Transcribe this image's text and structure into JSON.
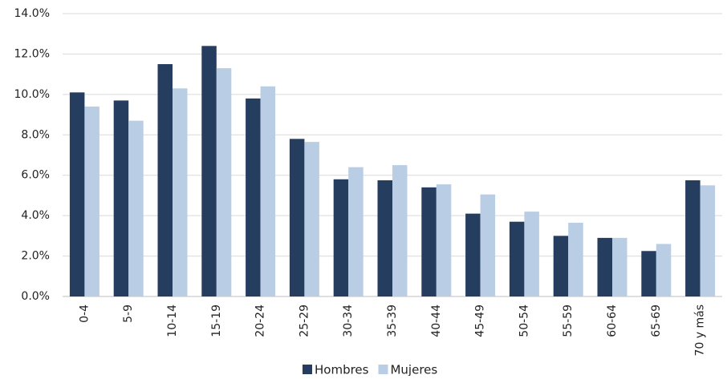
{
  "chart_data": {
    "type": "bar",
    "categories": [
      "0-4",
      "5-9",
      "10-14",
      "15-19",
      "20-24",
      "25-29",
      "30-34",
      "35-39",
      "40-44",
      "45-49",
      "50-54",
      "55-59",
      "60-64",
      "65-69",
      "70 y más"
    ],
    "series": [
      {
        "name": "Hombres",
        "color": "#253d5f",
        "values": [
          10.1,
          9.7,
          11.5,
          12.4,
          9.8,
          7.8,
          5.8,
          5.75,
          5.4,
          4.1,
          3.7,
          3.0,
          2.9,
          2.25,
          5.75
        ]
      },
      {
        "name": "Mujeres",
        "color": "#b9cde5",
        "values": [
          9.4,
          8.7,
          10.3,
          11.3,
          10.4,
          7.65,
          6.4,
          6.5,
          5.55,
          5.05,
          4.2,
          3.65,
          2.9,
          2.6,
          5.5
        ]
      }
    ],
    "ylim": [
      0,
      14
    ],
    "yticks": [
      {
        "value": 0,
        "label": "0.0%"
      },
      {
        "value": 2,
        "label": "2.0%"
      },
      {
        "value": 4,
        "label": "4.0%"
      },
      {
        "value": 6,
        "label": "6.0%"
      },
      {
        "value": 8,
        "label": "8.0%"
      },
      {
        "value": 10,
        "label": "10.0%"
      },
      {
        "value": 12,
        "label": "12.0%"
      },
      {
        "value": 14,
        "label": "14.0%"
      }
    ],
    "grid": true,
    "legend": "bottom"
  }
}
